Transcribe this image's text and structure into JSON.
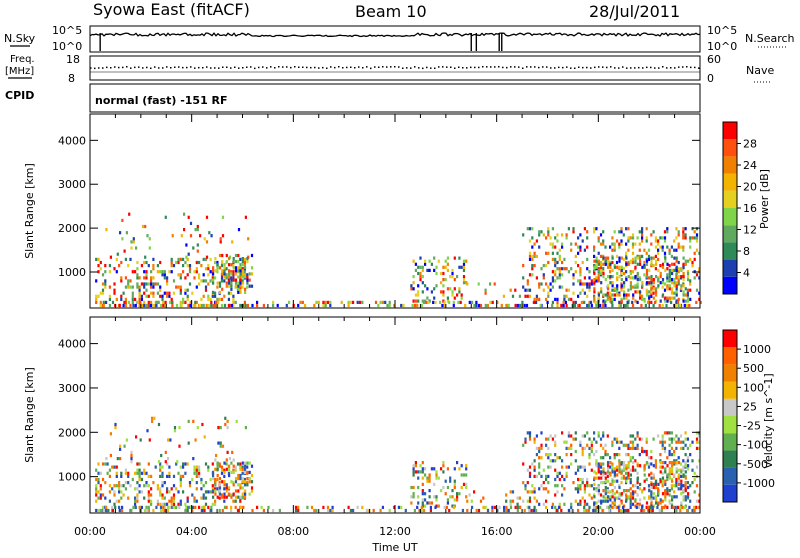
{
  "header": {
    "station": "Syowa East (fitACF)",
    "beam": "Beam 10",
    "date": "28/Jul/2011"
  },
  "top_panel": {
    "left_label": "N.Sky",
    "right_label": "N.Search",
    "left_ticks": [
      "10^5",
      "10^0"
    ],
    "right_ticks": [
      "10^5",
      "10^0"
    ],
    "freq_label_1": "Freq.",
    "freq_label_2": "[MHz]",
    "freq_ticks": [
      "18",
      "8"
    ],
    "nave_label": "Nave",
    "nave_ticks": [
      "60",
      "0"
    ],
    "cpid_label": "CPID",
    "cpid_text": "normal (fast) -151 RF"
  },
  "colors": {
    "scale": [
      "#0000ff",
      "#1e3fb0",
      "#2e8b57",
      "#5faa5f",
      "#7fd54a",
      "#e5d020",
      "#f2b400",
      "#f08000",
      "#ff5010",
      "#ff0000"
    ],
    "velocity": [
      "#2040d0",
      "#2a60b0",
      "#2e8050",
      "#60b050",
      "#a0e040",
      "#c8c8c8",
      "#f2b400",
      "#f08000",
      "#ff6000",
      "#ff0000"
    ]
  },
  "chart_data": [
    {
      "type": "heatmap",
      "title": "Power",
      "xlabel": "",
      "ylabel": "Slant Range [km]",
      "xlim": [
        0,
        24
      ],
      "ylim": [
        180,
        4600
      ],
      "x_ticks": [
        "00:00",
        "04:00",
        "08:00",
        "12:00",
        "16:00",
        "20:00",
        "00:00"
      ],
      "y_ticks": [
        1000,
        2000,
        3000,
        4000
      ],
      "colorbar_label": "Power [dB]",
      "colorbar_ticks": [
        "4",
        "8",
        "12",
        "16",
        "20",
        "24",
        "28"
      ]
    },
    {
      "type": "heatmap",
      "title": "Velocity",
      "xlabel": "Time UT",
      "ylabel": "Slant Range [km]",
      "xlim": [
        0,
        24
      ],
      "ylim": [
        180,
        4600
      ],
      "x_ticks": [
        "00:00",
        "04:00",
        "08:00",
        "12:00",
        "16:00",
        "20:00",
        "00:00"
      ],
      "y_ticks": [
        1000,
        2000,
        3000,
        4000
      ],
      "colorbar_label": "Velocity [m s^-1]",
      "colorbar_ticks": [
        "-1000",
        "-500",
        "-100",
        "-25",
        "25",
        "100",
        "500",
        "1000"
      ]
    }
  ]
}
